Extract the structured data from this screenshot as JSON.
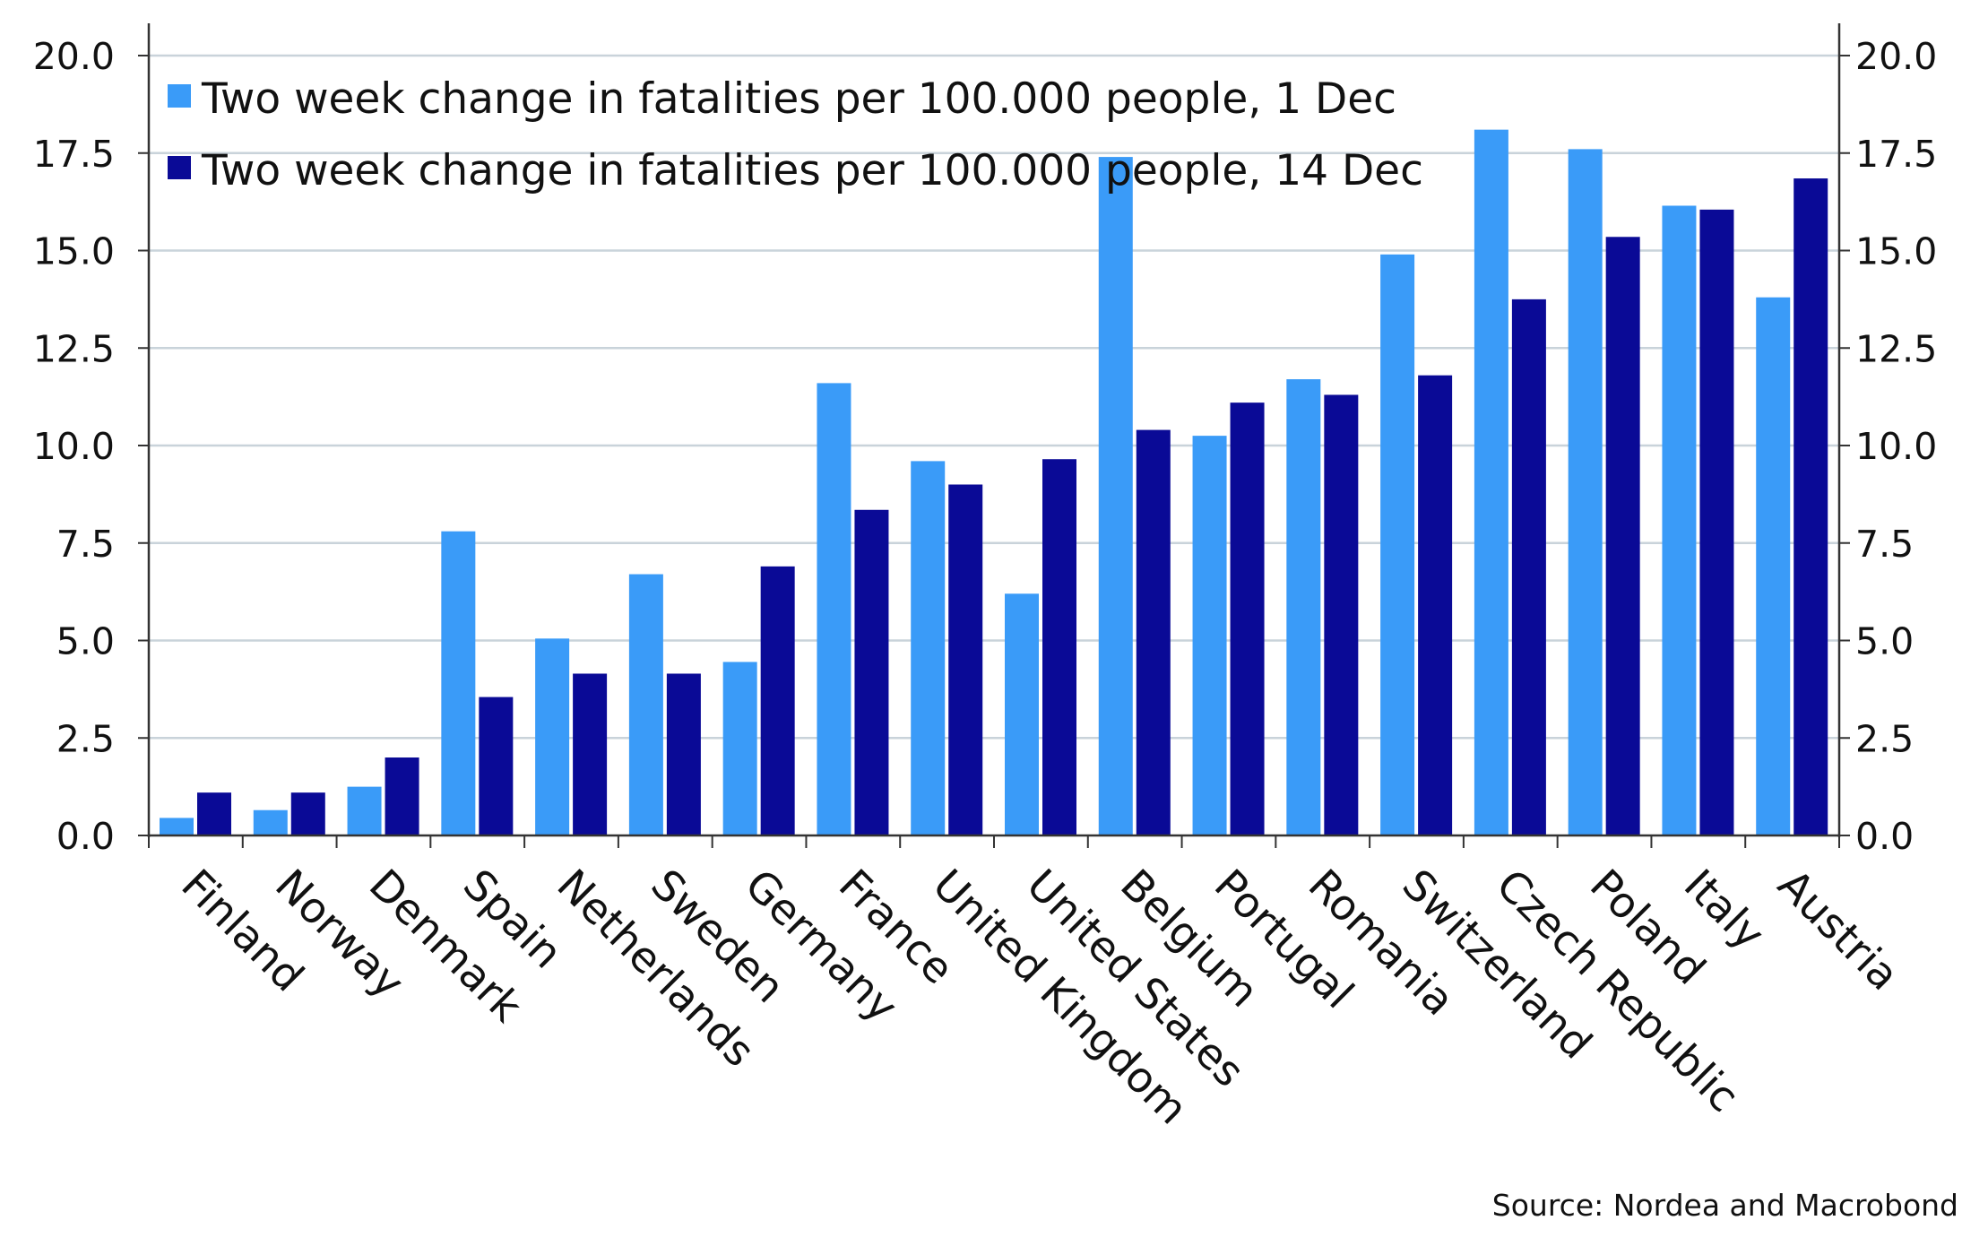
{
  "chart_data": {
    "type": "bar",
    "title": "",
    "xlabel": "",
    "ylabel": "",
    "ylim": [
      0,
      20
    ],
    "yticks": [
      "0.0",
      "2.5",
      "5.0",
      "7.5",
      "10.0",
      "12.5",
      "15.0",
      "17.5",
      "20.0"
    ],
    "secondary_axis": true,
    "grid": "horizontal",
    "legend_position": "top-left",
    "categories": [
      "Finland",
      "Norway",
      "Denmark",
      "Spain",
      "Netherlands",
      "Sweden",
      "Germany",
      "France",
      "United Kingdom",
      "United States",
      "Belgium",
      "Portugal",
      "Romania",
      "Switzerland",
      "Czech Republic",
      "Poland",
      "Italy",
      "Austria"
    ],
    "series": [
      {
        "name": "Two week change in fatalities per 100.000 people, 1 Dec",
        "color": "#3a9bf8",
        "values": [
          0.45,
          0.65,
          1.25,
          7.8,
          5.05,
          6.7,
          4.45,
          11.6,
          9.6,
          6.2,
          17.4,
          10.25,
          11.7,
          14.9,
          18.1,
          17.6,
          16.15,
          13.8
        ]
      },
      {
        "name": "Two week change in fatalities per 100.000 people, 14 Dec",
        "color": "#0a0a96",
        "values": [
          1.1,
          1.1,
          2.0,
          3.55,
          4.15,
          4.15,
          6.9,
          8.35,
          9.0,
          9.65,
          10.4,
          11.1,
          11.3,
          11.8,
          13.75,
          15.35,
          16.05,
          16.85
        ]
      }
    ],
    "source": "Source: Nordea and Macrobond"
  }
}
